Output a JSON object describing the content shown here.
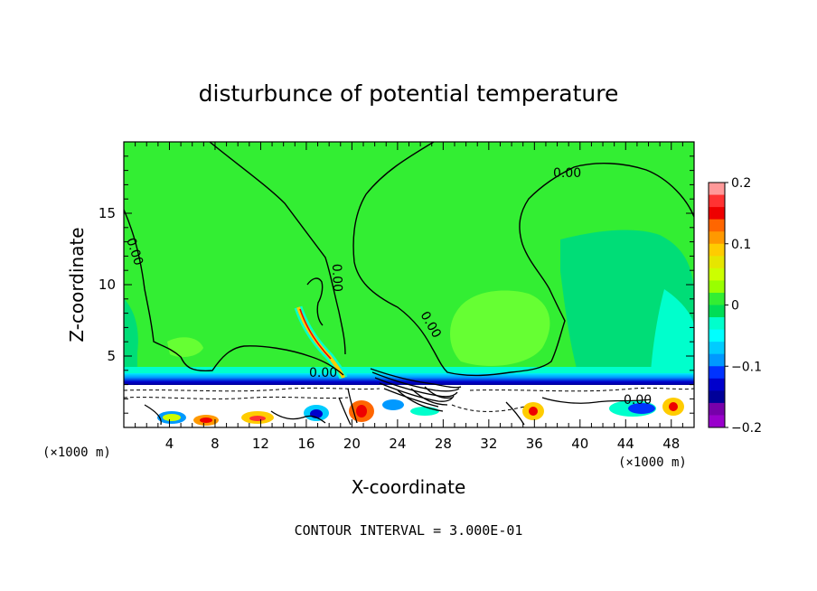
{
  "chart_data": {
    "type": "heatmap",
    "title": "disturbunce of potential temperature",
    "xlabel": "X-coordinate",
    "ylabel": "Z-coordinate",
    "x_unit_label": "(×1000 m)",
    "x_unit_label_right": "(×1000 m)",
    "xlim": [
      0,
      50
    ],
    "ylim": [
      0,
      20
    ],
    "x_ticks": [
      4,
      8,
      12,
      16,
      20,
      24,
      28,
      32,
      36,
      40,
      44,
      48
    ],
    "x_tick_labels": [
      "4",
      "8",
      "12",
      "16",
      "20",
      "24",
      "28",
      "32",
      "36",
      "40",
      "44",
      "48"
    ],
    "y_ticks": [
      5,
      10,
      15
    ],
    "y_tick_labels": [
      "5",
      "10",
      "15"
    ],
    "colorbar": {
      "range": [
        -0.2,
        0.2
      ],
      "tick_values": [
        0.2,
        0.1,
        0,
        -0.1,
        -0.2
      ],
      "tick_labels": [
        "0.2",
        "0.1",
        "0",
        "−0.1",
        "−0.2"
      ],
      "colors": [
        "#ff9999",
        "#ff3333",
        "#ee0000",
        "#ff6600",
        "#ff9900",
        "#ffcc00",
        "#e6e600",
        "#ccff00",
        "#99ff00",
        "#33ee33",
        "#00dd55",
        "#00ffcc",
        "#00ffff",
        "#00ccff",
        "#0099ff",
        "#0033ff",
        "#0000cc",
        "#000099",
        "#7700aa",
        "#9900cc"
      ]
    },
    "contour_labels": [
      "0.00",
      "0.00",
      "0.00",
      "0.00",
      "0.00",
      "0.00"
    ],
    "footer": "CONTOUR INTERVAL = 3.000E-01",
    "colors": {
      "background_field": "#33ee33",
      "light_field": "#66ff33",
      "cyan_field": "#00ffcc",
      "inversion": "#0000cc"
    }
  }
}
